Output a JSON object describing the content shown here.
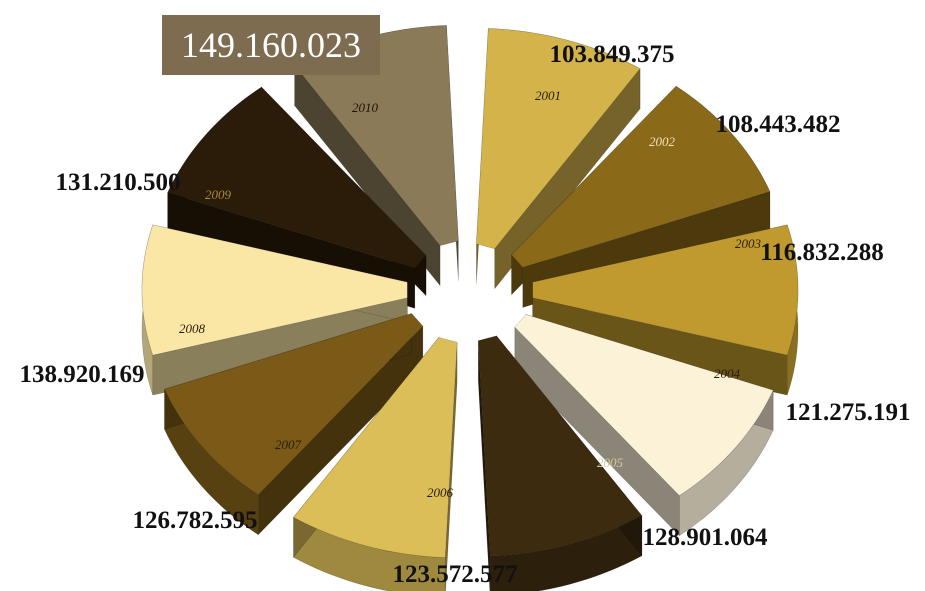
{
  "highlight": {
    "text": "149.160.023"
  },
  "chart_data": {
    "type": "pie",
    "title": "",
    "slices": [
      {
        "year": "2001",
        "value": "103.849.375",
        "color": "#d4b44a"
      },
      {
        "year": "2002",
        "value": "108.443.482",
        "color": "#8a6a18"
      },
      {
        "year": "2003",
        "value": "116.832.288",
        "color": "#c09a2e"
      },
      {
        "year": "2004",
        "value": "121.275.191",
        "color": "#fbf2d8"
      },
      {
        "year": "2005",
        "value": "128.901.064",
        "color": "#3d2b10"
      },
      {
        "year": "2006",
        "value": "123.572.577",
        "color": "#dcbe58"
      },
      {
        "year": "2007",
        "value": "126.782.595",
        "color": "#7a5a16"
      },
      {
        "year": "2008",
        "value": "138.920.169",
        "color": "#fae7a6"
      },
      {
        "year": "2009",
        "value": "131.210.500",
        "color": "#2a1c08"
      },
      {
        "year": "2010",
        "value": "149.160.023",
        "color": "#8a7a58"
      }
    ]
  }
}
